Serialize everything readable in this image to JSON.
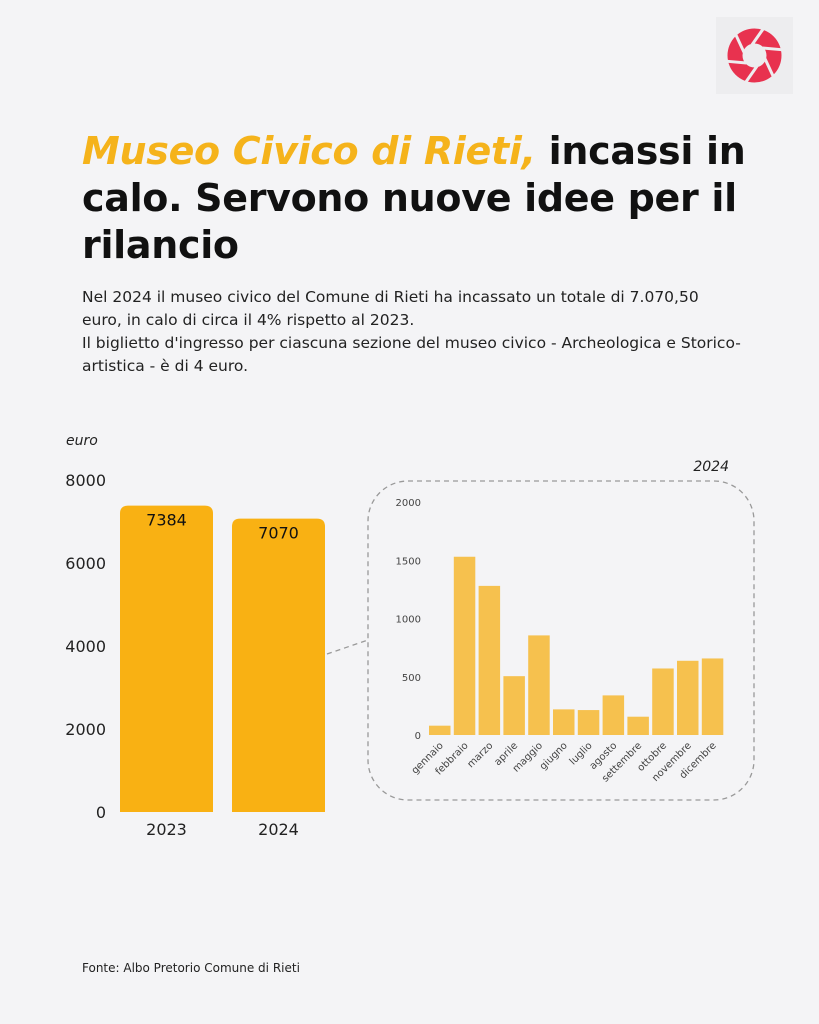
{
  "header": {
    "title_highlight": "Museo Civico di Rieti,",
    "title_rest": " incassi in calo. Servono nuove idee per il rilancio",
    "paragraphs": [
      "Nel 2024 il museo civico del Comune di Rieti ha incassato un totale di 7.070,50 euro, in calo di circa il 4% rispetto al 2023.",
      "Il biglietto d'ingresso per ciascuna sezione del museo civico - Archeologica e Storico-artistica - è di 4 euro."
    ]
  },
  "logo": {
    "icon": "camera-aperture-icon",
    "color": "#e8324f"
  },
  "source": "Fonte: Albo Pretorio Comune di Rieti",
  "colors": {
    "bar_main": "#f9b113",
    "bar_monthly": "#f6c14e",
    "accent": "#f5b31b"
  },
  "chart_data": [
    {
      "type": "bar",
      "ylabel": "euro",
      "categories": [
        "2023",
        "2024"
      ],
      "values": [
        7384,
        7070
      ],
      "data_labels": [
        "7384",
        "7070"
      ],
      "ylim": [
        0,
        8000
      ],
      "yticks": [
        "0",
        "2000",
        "4000",
        "6000",
        "8000"
      ],
      "grid": false
    },
    {
      "type": "bar",
      "title": "2024",
      "categories": [
        "gennaio",
        "febbraio",
        "marzo",
        "aprile",
        "maggio",
        "giugno",
        "luglio",
        "agosto",
        "settembre",
        "ottobre",
        "novembre",
        "dicembre"
      ],
      "values": [
        80,
        1530,
        1280,
        505,
        855,
        220,
        214,
        340,
        157,
        571,
        637,
        657
      ],
      "ylim": [
        0,
        2000
      ],
      "yticks": [
        "0",
        "500",
        "1000",
        "1500",
        "2000"
      ],
      "grid": false
    }
  ]
}
